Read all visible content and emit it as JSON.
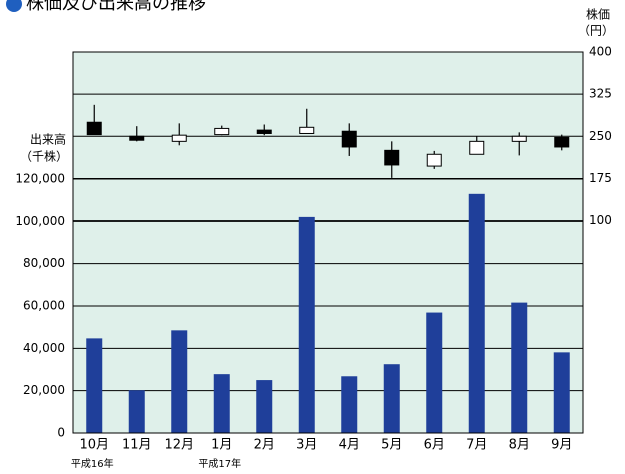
{
  "chart_data": {
    "type": "candlestick_bar",
    "title": "株価及び出来高の推移",
    "y_label": [
      "出来高",
      "（千株）"
    ],
    "y2_label": [
      "株価",
      "（円）"
    ],
    "categories": [
      "10月",
      "11月",
      "12月",
      "1月",
      "2月",
      "3月",
      "4月",
      "5月",
      "6月",
      "7月",
      "8月",
      "9月"
    ],
    "x_sublabels": [
      "平成16年",
      null,
      null,
      "平成17年",
      null,
      null,
      null,
      null,
      null,
      null,
      null,
      null
    ],
    "ylim": [
      0,
      180000
    ],
    "yticks": [
      0,
      {
        "value": 20000,
        "label": "20,000"
      },
      {
        "value": 40000,
        "label": "40,000"
      },
      {
        "value": 60000,
        "label": "60,000"
      },
      {
        "value": 80000,
        "label": "80,000"
      },
      {
        "value": 100000,
        "label": "100,000"
      },
      {
        "value": 120000,
        "label": "120,000"
      }
    ],
    "y2lim": [
      -278,
      400
    ],
    "y2ticks": [
      100,
      175,
      250,
      325,
      400
    ],
    "grid": true,
    "background": "#dff0ea",
    "volume": {
      "color": "#1f3f9a",
      "values": [
        44700,
        20200,
        48500,
        27800,
        25000,
        102100,
        26800,
        32500,
        56900,
        113000,
        61600,
        38100
      ]
    },
    "candles": {
      "axis": "y2",
      "up_color": "#ffffff",
      "down_color": "#000000",
      "open": [
        275,
        250,
        241,
        253,
        261,
        255,
        259,
        225,
        197,
        218,
        241,
        248
      ],
      "high": [
        306,
        268,
        273,
        269,
        271,
        299,
        273,
        241,
        224,
        250,
        257,
        253
      ],
      "low": [
        253,
        241,
        234,
        252,
        252,
        255,
        215,
        176,
        192,
        218,
        216,
        225
      ],
      "close": [
        253,
        243,
        252,
        264,
        255,
        266,
        231,
        199,
        218,
        241,
        250,
        231
      ]
    }
  }
}
